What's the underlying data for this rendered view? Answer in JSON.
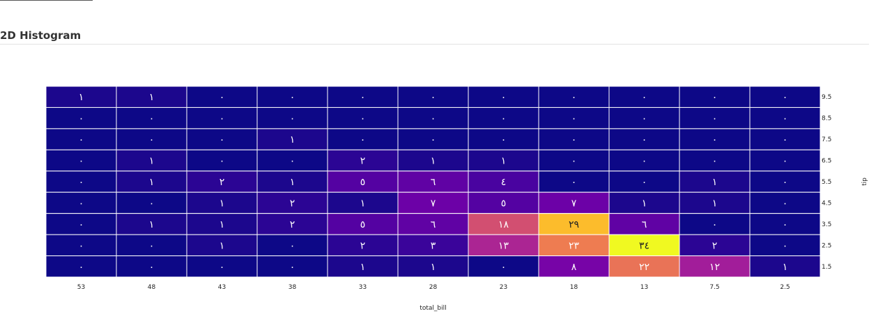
{
  "section": {
    "title": "2D Histogram"
  },
  "chart_data": {
    "type": "heatmap",
    "title": "",
    "xlabel": "total_bill",
    "ylabel": "tip",
    "x_categories": [
      "53",
      "48",
      "43",
      "38",
      "33",
      "28",
      "23",
      "18",
      "13",
      "7.5",
      "2.5"
    ],
    "y_categories": [
      "9.5",
      "8.5",
      "7.5",
      "6.5",
      "5.5",
      "4.5",
      "3.5",
      "2.5",
      "1.5"
    ],
    "values": [
      [
        1,
        1,
        0,
        0,
        0,
        0,
        0,
        0,
        0,
        0,
        0
      ],
      [
        0,
        0,
        0,
        0,
        0,
        0,
        0,
        0,
        0,
        0,
        0
      ],
      [
        0,
        0,
        0,
        1,
        0,
        0,
        0,
        0,
        0,
        0,
        0
      ],
      [
        0,
        1,
        0,
        0,
        2,
        1,
        1,
        0,
        0,
        0,
        0
      ],
      [
        0,
        1,
        2,
        1,
        5,
        6,
        4,
        0,
        0,
        1,
        0
      ],
      [
        0,
        0,
        1,
        2,
        1,
        7,
        5,
        7,
        1,
        1,
        0
      ],
      [
        0,
        1,
        1,
        2,
        5,
        6,
        18,
        29,
        6,
        0,
        0
      ],
      [
        0,
        0,
        1,
        0,
        2,
        3,
        13,
        23,
        34,
        2,
        0
      ],
      [
        0,
        0,
        0,
        0,
        1,
        1,
        0,
        8,
        22,
        12,
        1
      ]
    ],
    "cell_labels": [
      [
        "١",
        "١",
        "٠",
        "٠",
        "٠",
        "٠",
        "٠",
        "٠",
        "٠",
        "٠",
        "٠"
      ],
      [
        "٠",
        "٠",
        "٠",
        "٠",
        "٠",
        "٠",
        "٠",
        "٠",
        "٠",
        "٠",
        "٠"
      ],
      [
        "٠",
        "٠",
        "٠",
        "١",
        "٠",
        "٠",
        "٠",
        "٠",
        "٠",
        "٠",
        "٠"
      ],
      [
        "٠",
        "١",
        "٠",
        "٠",
        "٢",
        "١",
        "١",
        "٠",
        "٠",
        "٠",
        "٠"
      ],
      [
        "٠",
        "١",
        "٢",
        "١",
        "٥",
        "٦",
        "٤",
        "٠",
        "٠",
        "١",
        "٠"
      ],
      [
        "٠",
        "٠",
        "١",
        "٢",
        "١",
        "٧",
        "٥",
        "٧",
        "١",
        "١",
        "٠"
      ],
      [
        "٠",
        "١",
        "١",
        "٢",
        "٥",
        "٦",
        "١٨",
        "٢٩",
        "٦",
        "٠",
        "٠"
      ],
      [
        "٠",
        "٠",
        "١",
        "٠",
        "٢",
        "٣",
        "١٣",
        "٢٣",
        "٣٤",
        "٢",
        "٠"
      ],
      [
        "٠",
        "٠",
        "٠",
        "٠",
        "١",
        "١",
        "٠",
        "٨",
        "٢٢",
        "١٢",
        "١"
      ]
    ],
    "zmin": 0,
    "zmax": 34,
    "colorscale": [
      "#0d0887",
      "#46039f",
      "#7201a8",
      "#9c179e",
      "#bd3786",
      "#d8576b",
      "#ed7953",
      "#fb9f3a",
      "#fdca26",
      "#f0f921"
    ],
    "x_axis": "reversed",
    "y_axis_side": "right",
    "grid": true,
    "cell_border_color": "#ffffff"
  }
}
